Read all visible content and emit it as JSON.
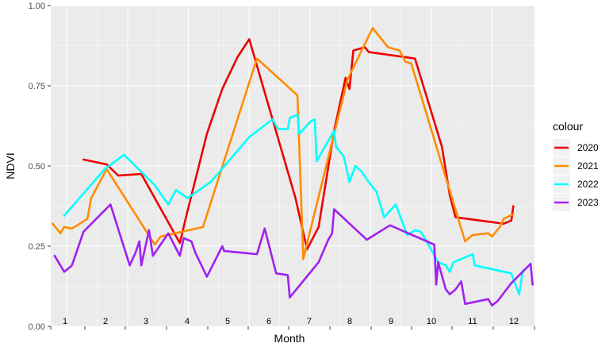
{
  "chart_data": {
    "type": "line",
    "xlabel": "Month",
    "ylabel": "NDVI",
    "xlim": [
      0.55,
      12.5
    ],
    "ylim": [
      0,
      1
    ],
    "y_ticks": [
      "0.00",
      "0.25",
      "0.50",
      "0.75",
      "1.00"
    ],
    "y_tick_values": [
      0,
      0.25,
      0.5,
      0.75,
      1.0
    ],
    "month_labels": [
      "1",
      "2",
      "3",
      "4",
      "5",
      "6",
      "7",
      "8",
      "9",
      "10",
      "11",
      "12"
    ],
    "legend_title": "colour",
    "legend_position": "right",
    "grid": true,
    "series": [
      {
        "name": "2020",
        "color": "#ee0000",
        "points": [
          [
            1.4,
            0.52
          ],
          [
            2.0,
            0.505
          ],
          [
            2.3,
            0.47
          ],
          [
            2.9,
            0.475
          ],
          [
            3.9,
            0.26
          ],
          [
            4.1,
            0.36
          ],
          [
            4.6,
            0.6
          ],
          [
            5.0,
            0.74
          ],
          [
            5.4,
            0.84
          ],
          [
            5.7,
            0.895
          ],
          [
            6.9,
            0.4
          ],
          [
            7.2,
            0.24
          ],
          [
            7.5,
            0.31
          ],
          [
            7.9,
            0.61
          ],
          [
            8.2,
            0.775
          ],
          [
            8.3,
            0.74
          ],
          [
            8.4,
            0.86
          ],
          [
            8.7,
            0.87
          ],
          [
            8.8,
            0.855
          ],
          [
            10.0,
            0.835
          ],
          [
            10.7,
            0.56
          ],
          [
            10.9,
            0.41
          ],
          [
            11.05,
            0.34
          ],
          [
            12.3,
            0.32
          ],
          [
            12.5,
            0.33
          ],
          [
            12.55,
            0.375
          ]
        ]
      },
      {
        "name": "2021",
        "color": "#ff8c00",
        "points": [
          [
            0.6,
            0.32
          ],
          [
            0.8,
            0.29
          ],
          [
            0.9,
            0.31
          ],
          [
            1.1,
            0.305
          ],
          [
            1.5,
            0.335
          ],
          [
            1.6,
            0.4
          ],
          [
            2.0,
            0.49
          ],
          [
            3.25,
            0.255
          ],
          [
            3.4,
            0.28
          ],
          [
            4.5,
            0.31
          ],
          [
            5.9,
            0.835
          ],
          [
            6.95,
            0.72
          ],
          [
            7.1,
            0.21
          ],
          [
            8.25,
            0.77
          ],
          [
            8.9,
            0.93
          ],
          [
            9.3,
            0.87
          ],
          [
            9.6,
            0.86
          ],
          [
            9.75,
            0.825
          ],
          [
            9.9,
            0.82
          ],
          [
            11.3,
            0.265
          ],
          [
            11.5,
            0.285
          ],
          [
            11.9,
            0.29
          ],
          [
            12.0,
            0.28
          ],
          [
            12.2,
            0.31
          ],
          [
            12.3,
            0.335
          ],
          [
            12.55,
            0.35
          ]
        ]
      },
      {
        "name": "2022",
        "color": "#00ffff",
        "points": [
          [
            0.9,
            0.345
          ],
          [
            1.95,
            0.49
          ],
          [
            2.45,
            0.535
          ],
          [
            3.25,
            0.44
          ],
          [
            3.6,
            0.38
          ],
          [
            3.8,
            0.425
          ],
          [
            4.1,
            0.4
          ],
          [
            4.7,
            0.45
          ],
          [
            5.7,
            0.59
          ],
          [
            6.3,
            0.645
          ],
          [
            6.45,
            0.615
          ],
          [
            6.7,
            0.615
          ],
          [
            6.75,
            0.65
          ],
          [
            6.95,
            0.66
          ],
          [
            7.0,
            0.6
          ],
          [
            7.3,
            0.64
          ],
          [
            7.4,
            0.645
          ],
          [
            7.45,
            0.515
          ],
          [
            7.9,
            0.61
          ],
          [
            7.95,
            0.56
          ],
          [
            8.15,
            0.53
          ],
          [
            8.3,
            0.45
          ],
          [
            8.45,
            0.5
          ],
          [
            8.6,
            0.485
          ],
          [
            8.8,
            0.45
          ],
          [
            9.0,
            0.42
          ],
          [
            9.2,
            0.34
          ],
          [
            9.5,
            0.38
          ],
          [
            9.8,
            0.285
          ],
          [
            10.0,
            0.3
          ],
          [
            10.15,
            0.295
          ],
          [
            10.3,
            0.265
          ],
          [
            10.6,
            0.2
          ],
          [
            10.8,
            0.19
          ],
          [
            10.9,
            0.17
          ],
          [
            11.0,
            0.2
          ],
          [
            11.5,
            0.225
          ],
          [
            11.55,
            0.19
          ],
          [
            12.5,
            0.165
          ],
          [
            12.7,
            0.1
          ],
          [
            12.8,
            0.175
          ]
        ]
      },
      {
        "name": "2023",
        "color": "#a020f0",
        "points": [
          [
            0.65,
            0.22
          ],
          [
            0.9,
            0.17
          ],
          [
            1.1,
            0.19
          ],
          [
            1.4,
            0.295
          ],
          [
            2.1,
            0.38
          ],
          [
            2.6,
            0.19
          ],
          [
            2.75,
            0.23
          ],
          [
            2.85,
            0.265
          ],
          [
            2.9,
            0.19
          ],
          [
            3.1,
            0.3
          ],
          [
            3.2,
            0.22
          ],
          [
            3.6,
            0.29
          ],
          [
            3.9,
            0.22
          ],
          [
            4.0,
            0.275
          ],
          [
            4.2,
            0.265
          ],
          [
            4.3,
            0.23
          ],
          [
            4.6,
            0.155
          ],
          [
            5.0,
            0.25
          ],
          [
            5.05,
            0.235
          ],
          [
            5.9,
            0.225
          ],
          [
            6.1,
            0.305
          ],
          [
            6.4,
            0.165
          ],
          [
            6.7,
            0.16
          ],
          [
            6.75,
            0.09
          ],
          [
            7.5,
            0.2
          ],
          [
            7.75,
            0.27
          ],
          [
            7.85,
            0.29
          ],
          [
            7.9,
            0.365
          ],
          [
            8.75,
            0.27
          ],
          [
            9.35,
            0.315
          ],
          [
            10.5,
            0.255
          ],
          [
            10.55,
            0.13
          ],
          [
            10.6,
            0.2
          ],
          [
            10.8,
            0.115
          ],
          [
            10.9,
            0.1
          ],
          [
            11.05,
            0.115
          ],
          [
            11.2,
            0.14
          ],
          [
            11.3,
            0.07
          ],
          [
            11.9,
            0.085
          ],
          [
            12.0,
            0.065
          ],
          [
            12.15,
            0.08
          ],
          [
            12.5,
            0.135
          ],
          [
            13.0,
            0.195
          ],
          [
            13.05,
            0.13
          ]
        ]
      }
    ]
  }
}
